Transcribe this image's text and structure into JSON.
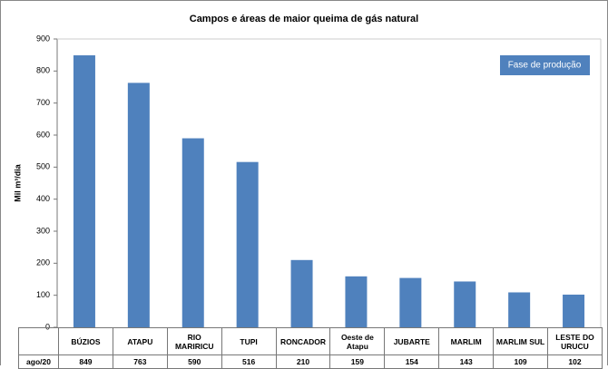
{
  "chart_data": {
    "type": "bar",
    "title": "Campos e áreas de maior queima de gás natural",
    "y_label": "Mil m³/dia",
    "annotation": "Fase de produção",
    "categories": [
      "BÚZIOS",
      "ATAPU",
      "RIO MARIRICU",
      "TUPI",
      "RONCADOR",
      "Oeste de Atapu",
      "JUBARTE",
      "MARLIM",
      "MARLIM SUL",
      "LESTE DO URUCU"
    ],
    "series": [
      {
        "name": "ago/20",
        "color": "#4f81bd",
        "values": [
          849,
          763,
          590,
          516,
          210,
          159,
          154,
          143,
          109,
          102
        ]
      }
    ],
    "ylim": [
      0,
      900
    ],
    "yticks": [
      0,
      100,
      200,
      300,
      400,
      500,
      600,
      700,
      800,
      900
    ]
  }
}
